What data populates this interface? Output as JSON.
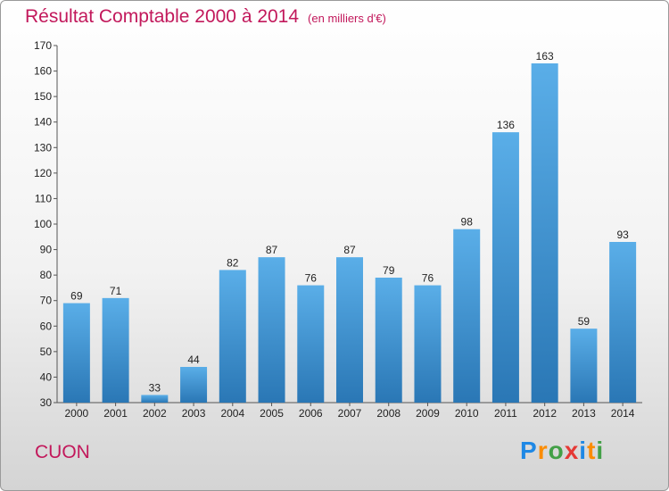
{
  "chart_data": {
    "type": "bar",
    "title": "Résultat Comptable 2000 à 2014",
    "unit_note": "(en milliers d'€)",
    "categories": [
      "2000",
      "2001",
      "2002",
      "2003",
      "2004",
      "2005",
      "2006",
      "2007",
      "2008",
      "2009",
      "2010",
      "2011",
      "2012",
      "2013",
      "2014"
    ],
    "values": [
      69,
      71,
      33,
      44,
      82,
      87,
      76,
      87,
      79,
      76,
      98,
      136,
      163,
      59,
      93
    ],
    "ylim": [
      30,
      170
    ],
    "yticks": [
      30,
      40,
      50,
      60,
      70,
      80,
      90,
      100,
      110,
      120,
      130,
      140,
      150,
      160,
      170
    ],
    "grid": false,
    "bar_color_top": "#5aaee8",
    "bar_color_bottom": "#2a77b5"
  },
  "footer": {
    "commune": "CUON",
    "logo_letters": [
      "P",
      "r",
      "o",
      "x",
      "i",
      "t",
      "i"
    ],
    "logo_colors": [
      "#1e88e5",
      "#fb8c00",
      "#43a047",
      "#e53935",
      "#1e88e5",
      "#fb8c00",
      "#43a047"
    ]
  }
}
